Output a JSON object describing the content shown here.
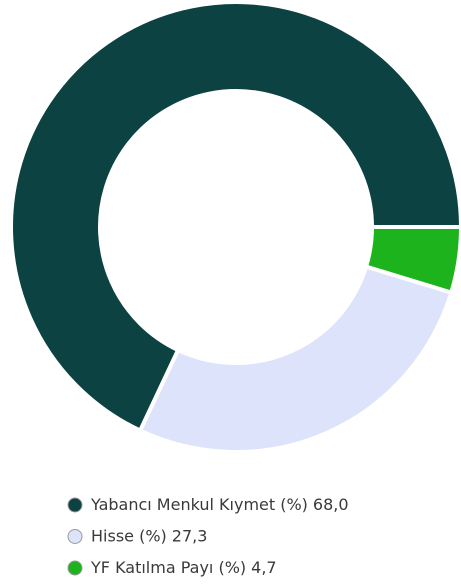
{
  "chart_data": {
    "type": "donut",
    "categories": [
      "Yabancı Menkul Kıymet (%)",
      "Hisse (%)",
      "YF Katılma Payı (%)"
    ],
    "values": [
      68.0,
      27.3,
      4.7
    ],
    "value_labels": [
      "68,0",
      "27,3",
      "4,7"
    ],
    "colors": [
      "#0d4242",
      "#dde3fb",
      "#1db31d"
    ],
    "legend": "bottom"
  }
}
